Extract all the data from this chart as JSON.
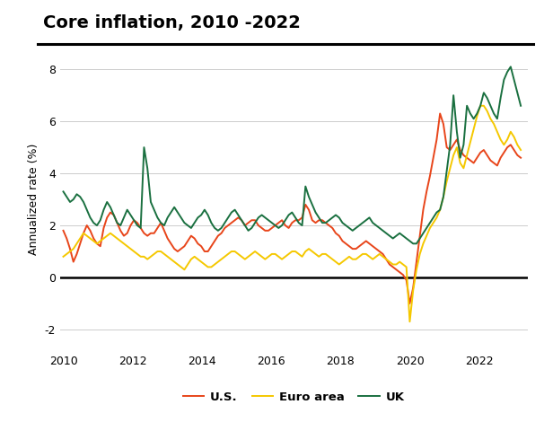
{
  "title": "Core inflation, 2010 -2022",
  "ylabel": "Annualized rate (%)",
  "ylim": [
    -2.8,
    8.8
  ],
  "yticks": [
    -2,
    0,
    2,
    4,
    6,
    8
  ],
  "xlim": [
    2009.9,
    2023.4
  ],
  "xticks": [
    2010,
    2012,
    2014,
    2016,
    2018,
    2020,
    2022
  ],
  "bg_color": "#ffffff",
  "title_fontsize": 14,
  "axis_fontsize": 9,
  "legend_fontsize": 9.5,
  "line_width": 1.4,
  "us_color": "#E8451A",
  "euro_color": "#F5C800",
  "uk_color": "#1A7040",
  "us_data": [
    1.8,
    1.5,
    1.1,
    0.6,
    0.9,
    1.3,
    1.7,
    2.0,
    1.8,
    1.5,
    1.3,
    1.2,
    1.9,
    2.3,
    2.5,
    2.4,
    2.1,
    1.8,
    1.6,
    1.7,
    2.0,
    2.2,
    2.1,
    1.9,
    1.7,
    1.6,
    1.7,
    1.7,
    1.9,
    2.1,
    1.8,
    1.5,
    1.3,
    1.1,
    1.0,
    1.1,
    1.2,
    1.4,
    1.6,
    1.5,
    1.3,
    1.2,
    1.0,
    1.0,
    1.2,
    1.4,
    1.6,
    1.7,
    1.9,
    2.0,
    2.1,
    2.2,
    2.3,
    2.2,
    2.0,
    2.1,
    2.2,
    2.2,
    2.0,
    1.9,
    1.8,
    1.8,
    1.9,
    2.0,
    2.1,
    2.2,
    2.0,
    1.9,
    2.1,
    2.2,
    2.2,
    2.3,
    2.8,
    2.6,
    2.2,
    2.1,
    2.2,
    2.2,
    2.1,
    2.0,
    1.9,
    1.7,
    1.6,
    1.4,
    1.3,
    1.2,
    1.1,
    1.1,
    1.2,
    1.3,
    1.4,
    1.3,
    1.2,
    1.1,
    1.0,
    0.9,
    0.7,
    0.5,
    0.4,
    0.3,
    0.2,
    0.1,
    -0.1,
    -1.0,
    -0.4,
    0.6,
    1.6,
    2.6,
    3.3,
    3.9,
    4.6,
    5.3,
    6.3,
    5.9,
    5.0,
    4.9,
    5.1,
    5.3,
    4.9,
    4.7,
    4.6,
    4.5,
    4.4,
    4.6,
    4.8,
    4.9,
    4.7,
    4.5,
    4.4,
    4.3,
    4.6,
    4.8,
    5.0,
    5.1,
    4.9,
    4.7,
    4.6
  ],
  "euro_data": [
    0.8,
    0.9,
    1.0,
    1.1,
    1.3,
    1.5,
    1.7,
    1.6,
    1.5,
    1.4,
    1.3,
    1.4,
    1.5,
    1.6,
    1.7,
    1.6,
    1.5,
    1.4,
    1.3,
    1.2,
    1.1,
    1.0,
    0.9,
    0.8,
    0.8,
    0.7,
    0.8,
    0.9,
    1.0,
    1.0,
    0.9,
    0.8,
    0.7,
    0.6,
    0.5,
    0.4,
    0.3,
    0.5,
    0.7,
    0.8,
    0.7,
    0.6,
    0.5,
    0.4,
    0.4,
    0.5,
    0.6,
    0.7,
    0.8,
    0.9,
    1.0,
    1.0,
    0.9,
    0.8,
    0.7,
    0.8,
    0.9,
    1.0,
    0.9,
    0.8,
    0.7,
    0.8,
    0.9,
    0.9,
    0.8,
    0.7,
    0.8,
    0.9,
    1.0,
    1.0,
    0.9,
    0.8,
    1.0,
    1.1,
    1.0,
    0.9,
    0.8,
    0.9,
    0.9,
    0.8,
    0.7,
    0.6,
    0.5,
    0.6,
    0.7,
    0.8,
    0.7,
    0.7,
    0.8,
    0.9,
    0.9,
    0.8,
    0.7,
    0.8,
    0.9,
    0.8,
    0.7,
    0.6,
    0.5,
    0.5,
    0.6,
    0.5,
    0.4,
    -1.7,
    -0.5,
    0.3,
    0.9,
    1.3,
    1.6,
    1.9,
    2.1,
    2.3,
    2.6,
    3.1,
    3.7,
    4.2,
    4.7,
    5.0,
    4.4,
    4.2,
    4.7,
    5.2,
    5.7,
    6.2,
    6.6,
    6.6,
    6.4,
    6.1,
    5.9,
    5.6,
    5.3,
    5.1,
    5.3,
    5.6,
    5.4,
    5.1,
    4.9
  ],
  "uk_data": [
    3.3,
    3.1,
    2.9,
    3.0,
    3.2,
    3.1,
    2.9,
    2.6,
    2.3,
    2.1,
    2.0,
    2.2,
    2.6,
    2.9,
    2.7,
    2.4,
    2.1,
    2.0,
    2.3,
    2.6,
    2.4,
    2.2,
    2.0,
    1.9,
    5.0,
    4.2,
    2.9,
    2.6,
    2.3,
    2.1,
    2.0,
    2.3,
    2.5,
    2.7,
    2.5,
    2.3,
    2.1,
    2.0,
    1.9,
    2.1,
    2.3,
    2.4,
    2.6,
    2.4,
    2.1,
    1.9,
    1.8,
    1.9,
    2.1,
    2.3,
    2.5,
    2.6,
    2.4,
    2.2,
    2.0,
    1.8,
    1.9,
    2.1,
    2.3,
    2.4,
    2.3,
    2.2,
    2.1,
    2.0,
    1.9,
    2.0,
    2.2,
    2.4,
    2.5,
    2.3,
    2.1,
    2.0,
    3.5,
    3.1,
    2.8,
    2.5,
    2.3,
    2.1,
    2.1,
    2.2,
    2.3,
    2.4,
    2.3,
    2.1,
    2.0,
    1.9,
    1.8,
    1.9,
    2.0,
    2.1,
    2.2,
    2.3,
    2.1,
    2.0,
    1.9,
    1.8,
    1.7,
    1.6,
    1.5,
    1.6,
    1.7,
    1.6,
    1.5,
    1.4,
    1.3,
    1.3,
    1.5,
    1.7,
    1.9,
    2.1,
    2.3,
    2.5,
    2.6,
    3.1,
    4.1,
    5.1,
    7.0,
    5.6,
    4.6,
    5.1,
    6.6,
    6.3,
    6.1,
    6.3,
    6.6,
    7.1,
    6.9,
    6.6,
    6.3,
    6.1,
    6.9,
    7.6,
    7.9,
    8.1,
    7.6,
    7.1,
    6.6
  ]
}
